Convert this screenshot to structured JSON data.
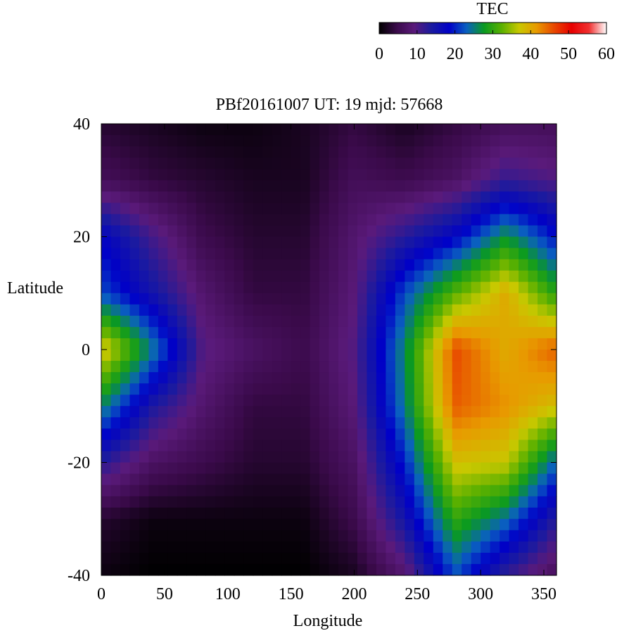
{
  "chart_data": {
    "type": "heatmap",
    "title": "PBf20161007  UT: 19  mjd: 57668",
    "xlabel": "Longitude",
    "ylabel": "Latitude",
    "xlim": [
      0,
      360
    ],
    "ylim": [
      -40,
      40
    ],
    "x_ticks": [
      "0",
      "50",
      "100",
      "150",
      "200",
      "250",
      "300",
      "350"
    ],
    "y_ticks": [
      "-40",
      "-20",
      "0",
      "20",
      "40"
    ],
    "colorbar": {
      "label": "TEC",
      "range": [
        0,
        60
      ],
      "ticks": [
        "0",
        "10",
        "20",
        "30",
        "40",
        "50",
        "60"
      ],
      "colormap": [
        "#000000",
        "#3a0a4a",
        "#5a1a7a",
        "#1a1aa0",
        "#0000c8",
        "#0a60c0",
        "#0a9a20",
        "#5ab000",
        "#c8c800",
        "#e89a00",
        "#e84800",
        "#e80000",
        "#f03030",
        "#ffffff"
      ]
    },
    "grid": {
      "longitude": [
        0,
        40,
        80,
        120,
        160,
        200,
        240,
        280,
        320,
        360
      ],
      "latitude": [
        40,
        30,
        20,
        10,
        0,
        -10,
        -20,
        -30,
        -40
      ],
      "tec": [
        [
          3,
          2,
          1,
          1,
          2,
          4,
          2,
          4,
          6,
          6
        ],
        [
          6,
          4,
          3,
          2,
          2,
          6,
          5,
          7,
          12,
          10
        ],
        [
          18,
          11,
          5,
          3,
          3,
          8,
          13,
          18,
          27,
          19
        ],
        [
          22,
          15,
          8,
          4,
          4,
          9,
          22,
          32,
          40,
          29
        ],
        [
          39,
          25,
          10,
          7,
          5,
          10,
          26,
          46,
          40,
          45
        ],
        [
          26,
          14,
          8,
          4,
          4,
          9,
          25,
          45,
          42,
          38
        ],
        [
          13,
          7,
          5,
          3,
          3,
          7,
          20,
          38,
          37,
          23
        ],
        [
          3,
          1,
          1,
          1,
          1,
          5,
          15,
          30,
          24,
          13
        ],
        [
          1,
          0,
          0,
          0,
          0,
          2,
          8,
          22,
          12,
          6
        ]
      ]
    }
  }
}
